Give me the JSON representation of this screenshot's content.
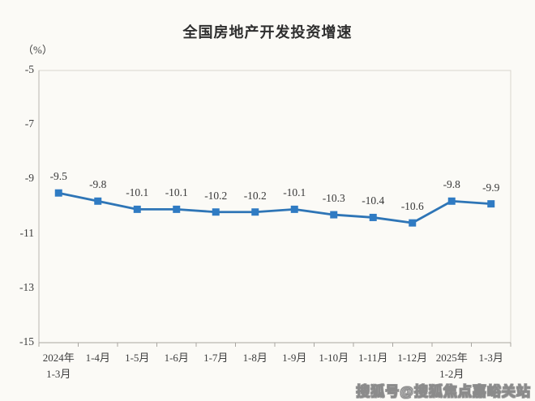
{
  "page": {
    "watermark": "搜狐号@搜狐焦点嘉峪关站"
  },
  "chart_data": {
    "type": "line",
    "title": "全国房地产开发投资增速",
    "unit_label": "（%）",
    "categories": [
      "2024年\n1-3月",
      "1-4月",
      "1-5月",
      "1-6月",
      "1-7月",
      "1-8月",
      "1-9月",
      "1-10月",
      "1-11月",
      "1-12月",
      "2025年\n1-2月",
      "1-3月"
    ],
    "values": [
      -9.5,
      -9.8,
      -10.1,
      -10.1,
      -10.2,
      -10.2,
      -10.1,
      -10.3,
      -10.4,
      -10.6,
      -9.8,
      -9.9
    ],
    "data_labels": [
      "-9.5",
      "-9.8",
      "-10.1",
      "-10.1",
      "-10.2",
      "-10.2",
      "-10.1",
      "-10.3",
      "-10.4",
      "-10.6",
      "-9.8",
      "-9.9"
    ],
    "yticks": [
      "-5",
      "-7",
      "-9",
      "-11",
      "-13",
      "-15"
    ],
    "ytick_values": [
      -5,
      -7,
      -9,
      -11,
      -13,
      -15
    ],
    "ylim": [
      -15,
      -5
    ],
    "grid": false,
    "legend": "none",
    "line_color": "#2e75b6",
    "marker_color": "#2f7bc3",
    "marker": "square",
    "axis_color": "#a8a5a0",
    "border_color": "#d8d5cf",
    "text_color": "#3d3d3d"
  }
}
